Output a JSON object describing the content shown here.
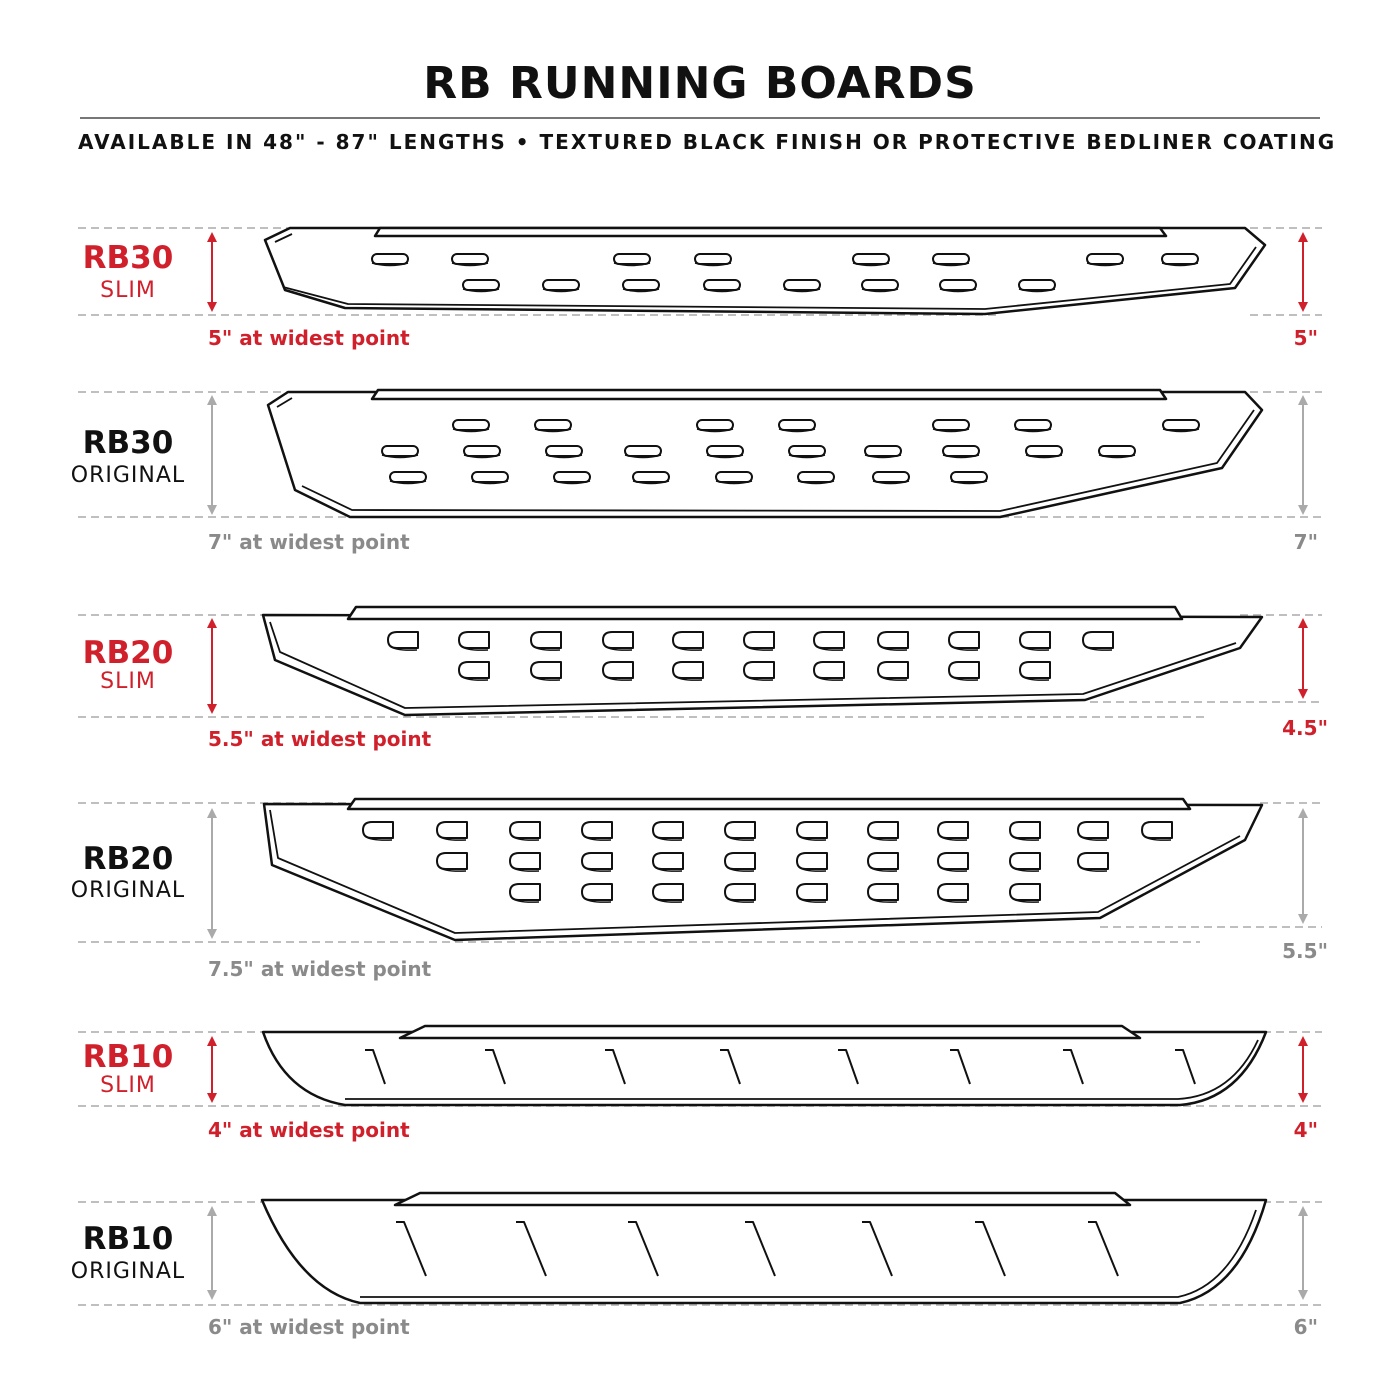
{
  "title": "RB RUNNING BOARDS",
  "subtitle": "AVAILABLE IN 48\" - 87\" LENGTHS  •  TEXTURED BLACK FINISH OR PROTECTIVE BEDLINER COATING",
  "colors": {
    "accent": "#d0202b",
    "muted": "#8a8a8a",
    "text": "#111111"
  },
  "rows": [
    {
      "model": "RB30",
      "variant": "SLIM",
      "highlight": true,
      "width_label": "5\" at widest point",
      "right_label": "5\""
    },
    {
      "model": "RB30",
      "variant": "ORIGINAL",
      "highlight": false,
      "width_label": "7\" at widest point",
      "right_label": "7\""
    },
    {
      "model": "RB20",
      "variant": "SLIM",
      "highlight": true,
      "width_label": "5.5\" at widest point",
      "right_label": "4.5\""
    },
    {
      "model": "RB20",
      "variant": "ORIGINAL",
      "highlight": false,
      "width_label": "7.5\" at widest point",
      "right_label": "5.5\""
    },
    {
      "model": "RB10",
      "variant": "SLIM",
      "highlight": true,
      "width_label": "4\" at widest point",
      "right_label": "4\""
    },
    {
      "model": "RB10",
      "variant": "ORIGINAL",
      "highlight": false,
      "width_label": "6\" at widest point",
      "right_label": "6\""
    }
  ]
}
